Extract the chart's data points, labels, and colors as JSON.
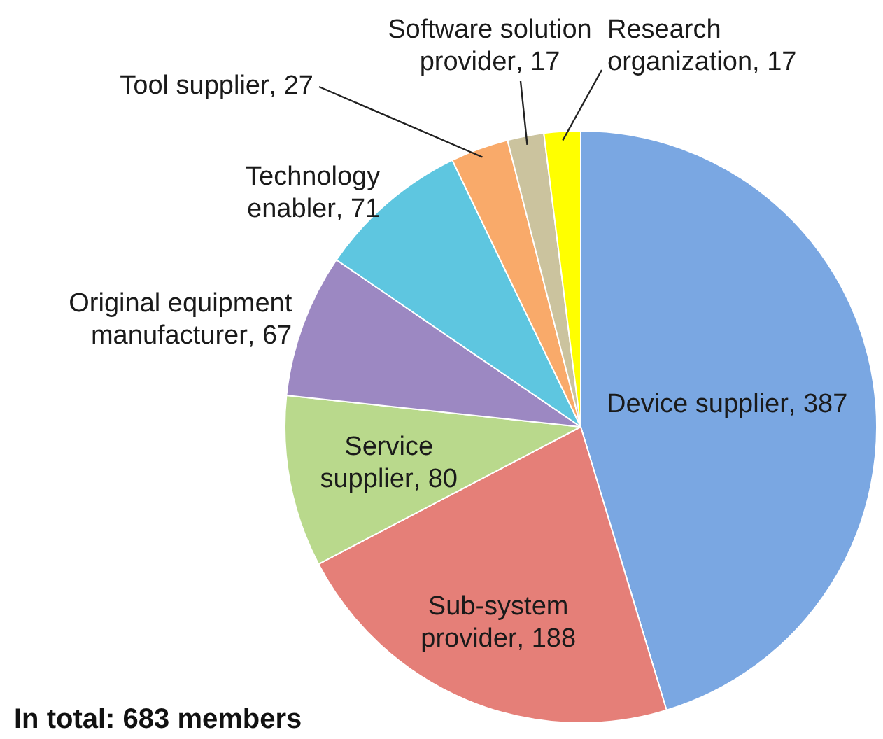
{
  "chart_data": {
    "type": "pie",
    "categories": [
      "Device supplier",
      "Sub-system provider",
      "Service supplier",
      "Original equipment manufacturer",
      "Technology enabler",
      "Tool supplier",
      "Software solution provider",
      "Research organization"
    ],
    "values": [
      387,
      188,
      80,
      67,
      71,
      27,
      17,
      17
    ],
    "colors": [
      "#7aa7e2",
      "#e57f78",
      "#b9d98c",
      "#9c88c2",
      "#5ec6e0",
      "#f9aa6a",
      "#cbc39e",
      "#ffff00"
    ],
    "value_labels": [
      ", 387",
      ", 188",
      ", 80",
      ", 67",
      ", 71",
      ", 27",
      ", 17",
      ", 17"
    ],
    "legend": false,
    "annotations": [
      "In total: 683 members"
    ]
  }
}
